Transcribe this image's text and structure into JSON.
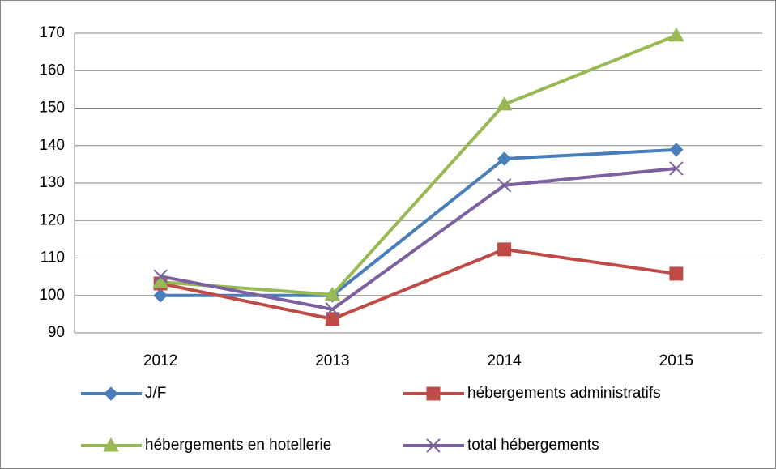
{
  "chart_data": {
    "type": "line",
    "categories": [
      "2012",
      "2013",
      "2014",
      "2015"
    ],
    "series": [
      {
        "name": "J/F",
        "color": "#4a7ebb",
        "marker": "diamond",
        "values": [
          100,
          100,
          136.5,
          138.9
        ]
      },
      {
        "name": "hébergements administratifs",
        "color": "#be4b48",
        "marker": "square",
        "values": [
          103.2,
          93.7,
          112.3,
          105.8
        ]
      },
      {
        "name": "hébergements en hotellerie",
        "color": "#98b954",
        "marker": "triangle",
        "values": [
          103.6,
          100.2,
          151.0,
          169.4
        ]
      },
      {
        "name": "total hébergements",
        "color": "#7d60a0",
        "marker": "x",
        "values": [
          105.1,
          96.3,
          129.4,
          133.9
        ]
      }
    ],
    "ylim": [
      90,
      170
    ],
    "yticks": [
      90,
      100,
      110,
      120,
      130,
      140,
      150,
      160,
      170
    ],
    "grid": true,
    "legend": "bottom"
  }
}
